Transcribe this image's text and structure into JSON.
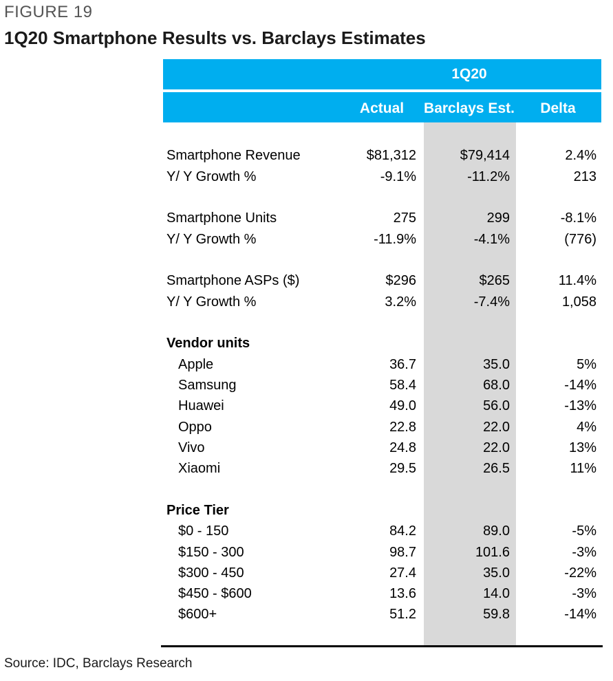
{
  "figure": {
    "label": "FIGURE 19",
    "title": "1Q20 Smartphone Results vs. Barclays Estimates",
    "source": "Source: IDC, Barclays Research"
  },
  "header": {
    "period": "1Q20",
    "columns": [
      "Actual",
      "Barclays Est.",
      "Delta"
    ]
  },
  "colors": {
    "header_band": "#00aeef",
    "estimate_column": "#d9d9d9"
  },
  "rows": [
    {
      "label": "Smartphone Revenue",
      "actual": "$81,312",
      "estimate": "$79,414",
      "delta": "2.4%"
    },
    {
      "label": "Y/ Y Growth %",
      "actual": "-9.1%",
      "estimate": "-11.2%",
      "delta": "213"
    },
    {
      "label": "Smartphone Units",
      "actual": "275",
      "estimate": "299",
      "delta": "-8.1%"
    },
    {
      "label": "Y/ Y Growth %",
      "actual": "-11.9%",
      "estimate": "-4.1%",
      "delta": "(776)"
    },
    {
      "label": "Smartphone ASPs ($)",
      "actual": "$296",
      "estimate": "$265",
      "delta": "11.4%"
    },
    {
      "label": "Y/ Y Growth %",
      "actual": "3.2%",
      "estimate": "-7.4%",
      "delta": "1,058"
    },
    {
      "label": "Vendor units",
      "actual": "",
      "estimate": "",
      "delta": ""
    },
    {
      "label": "Apple",
      "actual": "36.7",
      "estimate": "35.0",
      "delta": "5%"
    },
    {
      "label": "Samsung",
      "actual": "58.4",
      "estimate": "68.0",
      "delta": "-14%"
    },
    {
      "label": "Huawei",
      "actual": "49.0",
      "estimate": "56.0",
      "delta": "-13%"
    },
    {
      "label": "Oppo",
      "actual": "22.8",
      "estimate": "22.0",
      "delta": "4%"
    },
    {
      "label": "Vivo",
      "actual": "24.8",
      "estimate": "22.0",
      "delta": "13%"
    },
    {
      "label": "Xiaomi",
      "actual": "29.5",
      "estimate": "26.5",
      "delta": "11%"
    },
    {
      "label": "Price Tier",
      "actual": "",
      "estimate": "",
      "delta": ""
    },
    {
      "label": "$0 - 150",
      "actual": "84.2",
      "estimate": "89.0",
      "delta": "-5%"
    },
    {
      "label": "$150 - 300",
      "actual": "98.7",
      "estimate": "101.6",
      "delta": "-3%"
    },
    {
      "label": "$300 - 450",
      "actual": "27.4",
      "estimate": "35.0",
      "delta": "-22%"
    },
    {
      "label": "$450 - $600",
      "actual": "13.6",
      "estimate": "14.0",
      "delta": "-3%"
    },
    {
      "label": "$600+",
      "actual": "51.2",
      "estimate": "59.8",
      "delta": "-14%"
    }
  ]
}
